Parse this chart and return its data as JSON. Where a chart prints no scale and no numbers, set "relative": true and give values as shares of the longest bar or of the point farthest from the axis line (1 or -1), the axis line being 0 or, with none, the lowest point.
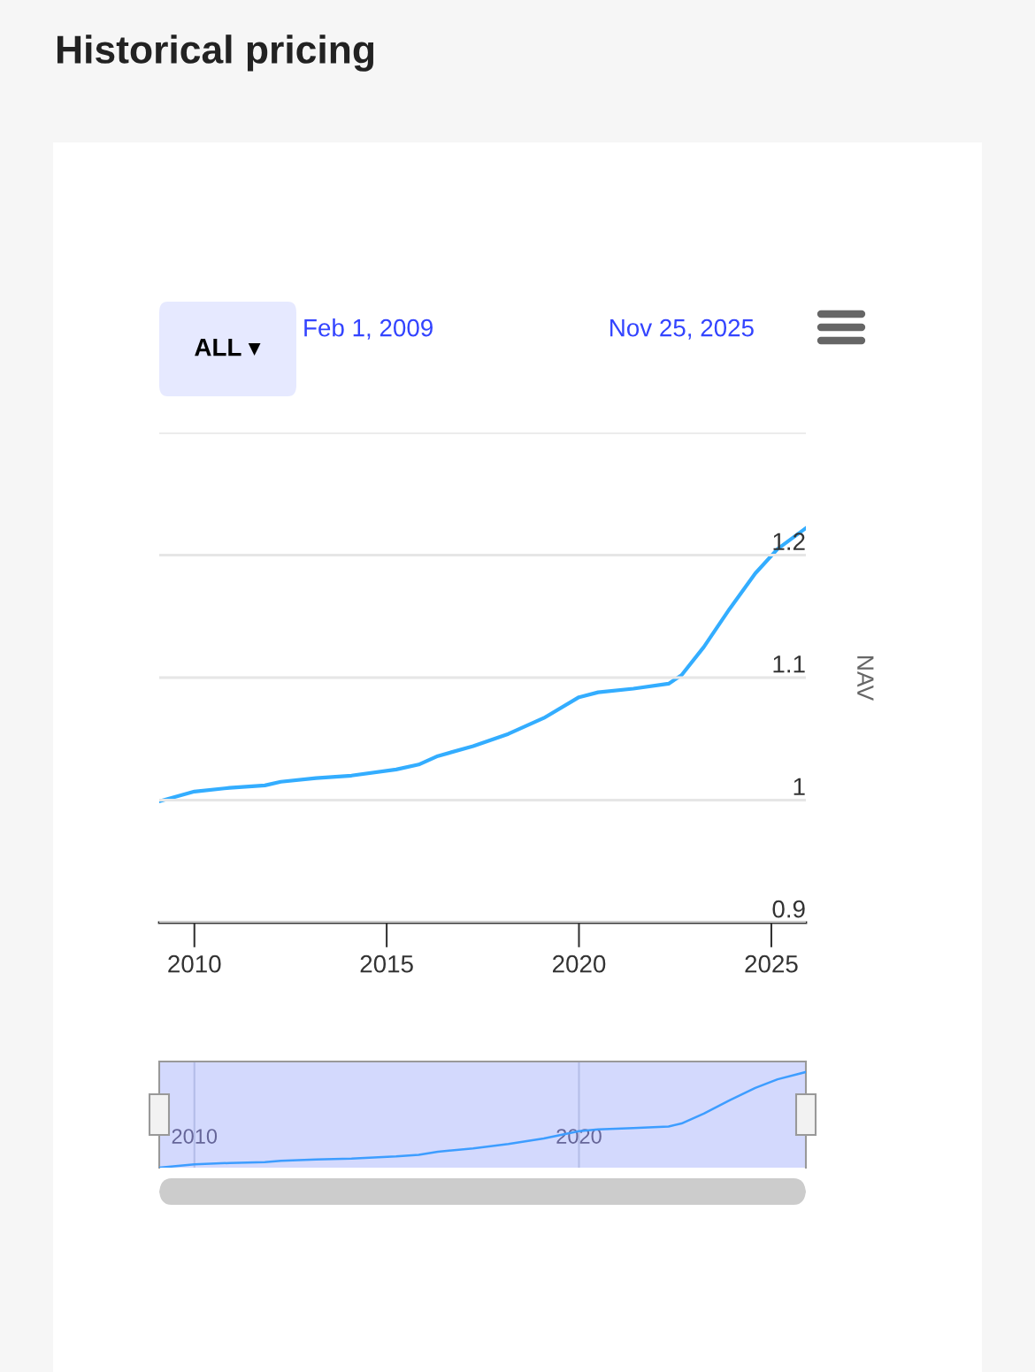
{
  "chart_data": [
    {
      "type": "line",
      "title": "Historical pricing",
      "ylabel": "NAV",
      "annotations": [
        "ALL ▾",
        "Feb 1, 2009",
        "Nov 25, 2025"
      ],
      "x": [
        "2009-02-01",
        "2010-01",
        "2010-12",
        "2011-11",
        "2012-04",
        "2013-03",
        "2014-02",
        "2015-04",
        "2015-11",
        "2016-05",
        "2017-04",
        "2018-03",
        "2019-02",
        "2020-01",
        "2020-07",
        "2021-06",
        "2022-05",
        "2022-09",
        "2023-04",
        "2023-12",
        "2024-08",
        "2025-03",
        "2025-11-25"
      ],
      "series": [
        {
          "color": "#33adff",
          "values": [
            0.999,
            1.007,
            1.01,
            1.012,
            1.015,
            1.018,
            1.02,
            1.025,
            1.029,
            1.036,
            1.044,
            1.054,
            1.067,
            1.084,
            1.088,
            1.091,
            1.095,
            1.102,
            1.125,
            1.156,
            1.185,
            1.205,
            1.222
          ]
        }
      ],
      "xlim": [
        "2009-02-01",
        "2025-11-25"
      ],
      "xticks": [
        {
          "value": "2010-01-01",
          "label": "2010"
        },
        {
          "value": "2015-01-01",
          "label": "2015"
        },
        {
          "value": "2020-01-01",
          "label": "2020"
        },
        {
          "value": "2025-01-01",
          "label": "2025"
        }
      ],
      "ylim": [
        0.9,
        1.3
      ],
      "yticks": [
        {
          "value": 0.9,
          "label": "0.9"
        },
        {
          "value": 1.0,
          "label": "1"
        },
        {
          "value": 1.1,
          "label": "1.1"
        },
        {
          "value": 1.2,
          "label": "1.2"
        },
        {
          "value": 1.3,
          "label": null
        }
      ],
      "grid": "y",
      "marker": "none",
      "line_style": "solid"
    },
    {
      "type": "line",
      "relative": true,
      "x": [
        "2009-02-01",
        "2010-01",
        "2010-12",
        "2011-11",
        "2012-04",
        "2013-03",
        "2014-02",
        "2015-04",
        "2015-11",
        "2016-05",
        "2017-04",
        "2018-03",
        "2019-02",
        "2020-01",
        "2020-07",
        "2021-06",
        "2022-05",
        "2022-09",
        "2023-04",
        "2023-12",
        "2024-08",
        "2025-03",
        "2025-11-25"
      ],
      "series": [
        {
          "color": "#3d9dff",
          "values": [
            0,
            0.034,
            0.049,
            0.058,
            0.072,
            0.085,
            0.094,
            0.117,
            0.135,
            0.166,
            0.202,
            0.247,
            0.305,
            0.381,
            0.399,
            0.413,
            0.43,
            0.462,
            0.565,
            0.704,
            0.834,
            0.924,
            1
          ]
        }
      ],
      "xlim": [
        "2009-02-01",
        "2025-11-25"
      ],
      "xticks": [
        {
          "value": "2010-01-01",
          "label": "2010"
        },
        {
          "value": "2020-01-01",
          "label": "2020"
        }
      ],
      "grid": "x",
      "tick_labels": "x",
      "marker": "none",
      "line_style": "solid"
    }
  ]
}
